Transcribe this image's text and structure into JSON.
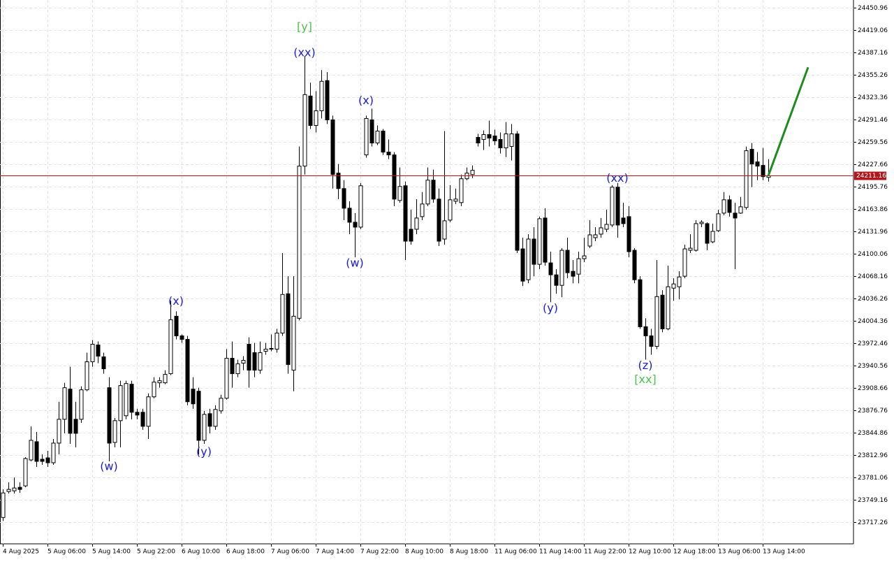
{
  "chart_data": {
    "type": "candlestick",
    "categories": [
      "4 Aug 2025",
      null,
      null,
      null,
      null,
      null,
      null,
      null,
      "5 Aug 06:00",
      null,
      null,
      null,
      null,
      null,
      null,
      null,
      "5 Aug 14:00",
      null,
      null,
      null,
      null,
      null,
      null,
      null,
      "5 Aug 22:00",
      null,
      null,
      null,
      null,
      null,
      null,
      null,
      "6 Aug 10:00",
      null,
      null,
      null,
      null,
      null,
      null,
      null,
      "6 Aug 18:00",
      null,
      null,
      null,
      null,
      null,
      null,
      null,
      "7 Aug 06:00",
      null,
      null,
      null,
      null,
      null,
      null,
      null,
      "7 Aug 14:00",
      null,
      null,
      null,
      null,
      null,
      null,
      null,
      "7 Aug 22:00",
      null,
      null,
      null,
      null,
      null,
      null,
      null,
      "8 Aug 10:00",
      null,
      null,
      null,
      null,
      null,
      null,
      null,
      "8 Aug 18:00",
      null,
      null,
      null,
      null,
      null,
      null,
      null,
      "11 Aug 06:00",
      null,
      null,
      null,
      null,
      null,
      null,
      null,
      "11 Aug 14:00",
      null,
      null,
      null,
      null,
      null,
      null,
      null,
      "11 Aug 22:00",
      null,
      null,
      null,
      null,
      null,
      null,
      null,
      "12 Aug 10:00",
      null,
      null,
      null,
      null,
      null,
      null,
      null,
      "12 Aug 18:00",
      null,
      null,
      null,
      null,
      null,
      null,
      null,
      "13 Aug 06:00",
      null,
      null,
      null,
      null,
      null,
      null,
      null,
      "13 Aug 14:00",
      null
    ],
    "open": [
      23724,
      23761,
      23762,
      23767,
      23769,
      23806,
      23832,
      23807,
      23809,
      23802,
      23830,
      23864,
      23907,
      23864,
      23864,
      23906,
      23946,
      23970,
      23953,
      23909,
      23831,
      23862,
      23869,
      23914,
      23874,
      23874,
      23854,
      23896,
      23916,
      23916,
      23929,
      24011,
      23983,
      23978,
      23907,
      23904,
      23834,
      23872,
      23854,
      23876,
      23894,
      23951,
      23929,
      23944,
      23971,
      23959,
      23934,
      23961,
      23964,
      23964,
      23987,
      24043,
      23934,
      24008,
      24225,
      24325,
      24283,
      24304,
      24347,
      24291,
      24215,
      24193,
      24165,
      24145,
      24138,
      24241,
      24291,
      24258,
      24275,
      24245,
      24241,
      24176,
      24197,
      24135,
      24135,
      24153,
      24171,
      24205,
      24178,
      24121,
      24148,
      24175,
      24173,
      24207,
      24213,
      24266,
      24263,
      24270,
      24268,
      24263,
      24251,
      24253,
      24271,
      24107,
      24063,
      24121,
      24085,
      24151,
      24087,
      24070,
      24055,
      24105,
      24075,
      24071,
      24093,
      24111,
      24123,
      24128,
      24135,
      24141,
      24195,
      24151,
      24153,
      24105,
      24063,
      23996,
      23983,
      23968,
      24041,
      23993,
      24051,
      24053,
      24068,
      24105,
      24105,
      24143,
      24143,
      24117,
      24133,
      24158,
      24177,
      24158,
      24158,
      24166,
      24249,
      24231,
      24226,
      24209
    ],
    "high": [
      23764,
      23774,
      23781,
      23774,
      23810,
      23854,
      23846,
      23814,
      23819,
      23836,
      23889,
      23916,
      23939,
      23889,
      23911,
      23959,
      23977,
      23975,
      23959,
      23924,
      23866,
      23919,
      23919,
      23919,
      23879,
      23879,
      23901,
      23924,
      23924,
      23934,
      24033,
      24018,
      23985,
      23983,
      23924,
      23909,
      23876,
      23879,
      23884,
      23899,
      23964,
      23975,
      23949,
      23954,
      23981,
      23973,
      23975,
      23973,
      23985,
      23993,
      24101,
      24068,
      24068,
      24253,
      24382,
      24344,
      24332,
      24362,
      24359,
      24297,
      24228,
      24205,
      24175,
      24158,
      24201,
      24297,
      24307,
      24283,
      24278,
      24263,
      24245,
      24223,
      24203,
      24163,
      24178,
      24188,
      24223,
      24220,
      24193,
      24275,
      24198,
      24193,
      24213,
      24223,
      24226,
      24271,
      24276,
      24290,
      24277,
      24273,
      24288,
      24285,
      24275,
      24123,
      24128,
      24138,
      24153,
      24165,
      24103,
      24078,
      24108,
      24123,
      24091,
      24103,
      24123,
      24148,
      24138,
      24151,
      24163,
      24198,
      24201,
      24173,
      24168,
      24108,
      24068,
      24008,
      23993,
      24091,
      24048,
      24083,
      24065,
      24075,
      24113,
      24128,
      24148,
      24148,
      24145,
      24143,
      24163,
      24188,
      24183,
      24173,
      24181,
      24253,
      24258,
      24245,
      24251,
      24235
    ],
    "low": [
      23719,
      23758,
      23758,
      23759,
      23767,
      23804,
      23796,
      23799,
      23796,
      23799,
      23814,
      23844,
      23829,
      23824,
      23859,
      23904,
      23939,
      23944,
      23929,
      23804,
      23824,
      23824,
      23864,
      23864,
      23864,
      23849,
      23836,
      23894,
      23909,
      23914,
      23927,
      23978,
      23973,
      23884,
      23879,
      23814,
      23829,
      23844,
      23849,
      23872,
      23892,
      23909,
      23924,
      23934,
      23909,
      23924,
      23929,
      23956,
      23961,
      23959,
      23983,
      23929,
      23904,
      24005,
      24213,
      24278,
      24273,
      24293,
      24285,
      24193,
      24178,
      24148,
      24128,
      24095,
      24135,
      24237,
      24253,
      24255,
      24241,
      24235,
      24168,
      24173,
      24091,
      24113,
      24128,
      24148,
      24168,
      24173,
      24111,
      24113,
      24145,
      24171,
      24168,
      24205,
      24208,
      24253,
      24248,
      24253,
      24255,
      24243,
      24238,
      24233,
      24101,
      24054,
      24058,
      24068,
      24078,
      24083,
      24031,
      24043,
      24038,
      24065,
      24058,
      24058,
      24088,
      24108,
      24118,
      24123,
      24131,
      24138,
      24123,
      24138,
      24095,
      24058,
      23993,
      23949,
      23956,
      23964,
      23988,
      23991,
      24033,
      24035,
      24065,
      24101,
      24103,
      24138,
      24105,
      24115,
      24131,
      24155,
      24153,
      24078,
      24157,
      24163,
      24195,
      24205,
      24205,
      24203
    ],
    "close": [
      23759,
      23764,
      23766,
      23764,
      23808,
      23834,
      23804,
      23804,
      23802,
      23830,
      23864,
      23909,
      23844,
      23844,
      23906,
      23946,
      23971,
      23954,
      23936,
      23830,
      23862,
      23912,
      23915,
      23874,
      23870,
      23854,
      23896,
      23917,
      23919,
      23928,
      24006,
      23983,
      23978,
      23889,
      23886,
      23834,
      23871,
      23854,
      23878,
      23894,
      23951,
      23929,
      23943,
      23948,
      23934,
      23934,
      23959,
      23964,
      23965,
      23987,
      24042,
      23942,
      24011,
      24225,
      24327,
      24283,
      24304,
      24346,
      24291,
      24213,
      24193,
      24165,
      24145,
      24138,
      24197,
      24293,
      24258,
      24275,
      24245,
      24241,
      24178,
      24196,
      24118,
      24118,
      24151,
      24171,
      24205,
      24178,
      24118,
      24147,
      24177,
      24178,
      24207,
      24215,
      24219,
      24258,
      24270,
      24265,
      24261,
      24251,
      24271,
      24271,
      24105,
      24061,
      24121,
      24085,
      24150,
      24088,
      24070,
      24055,
      24105,
      24073,
      24068,
      24093,
      24097,
      24127,
      24127,
      24137,
      24142,
      24195,
      24141,
      24143,
      24103,
      24063,
      23996,
      23983,
      23968,
      24039,
      23993,
      24053,
      24057,
      24067,
      24107,
      24108,
      24143,
      24145,
      24115,
      24132,
      24157,
      24177,
      24159,
      24151,
      24167,
      24247,
      24228,
      24225,
      24210,
      24211.16
    ],
    "ylim": [
      23686.4,
      24461.9
    ],
    "yticks": [
      24450.96,
      24419.06,
      24387.16,
      24355.26,
      24323.36,
      24291.46,
      24259.56,
      24227.66,
      24195.76,
      24163.86,
      24131.96,
      24100.06,
      24068.16,
      24036.26,
      24004.36,
      23972.46,
      23940.56,
      23908.66,
      23876.76,
      23844.86,
      23812.96,
      23781.06,
      23749.16,
      23717.26
    ],
    "grid": true,
    "up_color": "#ffffff",
    "down_color": "#000000",
    "price_line_color": "#b0161b",
    "forecast": {
      "color": "#1e8c1e",
      "value": 24366
    },
    "annotations": [
      {
        "text": "(w)",
        "index": 19,
        "value": 23796,
        "color": "#1a1adc"
      },
      {
        "text": "(x)",
        "index": 31,
        "value": 24032,
        "color": "#1a1adc"
      },
      {
        "text": "(y)",
        "index": 36,
        "value": 23817,
        "color": "#1a1adc"
      },
      {
        "text": "[y]",
        "index": 54,
        "value": 24423,
        "color": "#4cc34c"
      },
      {
        "text": "(xx)",
        "index": 54,
        "value": 24386,
        "color": "#1a1adc"
      },
      {
        "text": "(w)",
        "index": 63,
        "value": 24086,
        "color": "#1a1adc"
      },
      {
        "text": "(x)",
        "index": 65,
        "value": 24318,
        "color": "#1a1adc"
      },
      {
        "text": "(y)",
        "index": 98,
        "value": 24022,
        "color": "#1a1adc"
      },
      {
        "text": "(xx)",
        "index": 110,
        "value": 24207,
        "color": "#1a1adc"
      },
      {
        "text": "(z)",
        "index": 115,
        "value": 23940,
        "color": "#1a1adc"
      },
      {
        "text": "[xx]",
        "index": 115,
        "value": 23920,
        "color": "#4cc34c"
      }
    ]
  }
}
